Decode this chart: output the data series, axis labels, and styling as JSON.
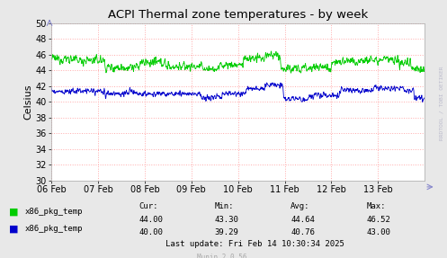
{
  "title": "ACPI Thermal zone temperatures - by week",
  "ylabel": "Celsius",
  "ylim": [
    30,
    50
  ],
  "yticks": [
    30,
    32,
    34,
    36,
    38,
    40,
    42,
    44,
    46,
    48,
    50
  ],
  "fig_bg_color": "#e8e8e8",
  "plot_bg_color": "#ffffff",
  "grid_color": "#ffaaaa",
  "line1_color": "#00cc00",
  "line2_color": "#0000cc",
  "legend_labels": [
    "x86_pkg_temp",
    "x86_pkg_temp"
  ],
  "stats_headers": [
    "Cur:",
    "Min:",
    "Avg:",
    "Max:"
  ],
  "stats_line1": [
    "44.00",
    "43.30",
    "44.64",
    "46.52"
  ],
  "stats_line2": [
    "40.00",
    "39.29",
    "40.76",
    "43.00"
  ],
  "last_update": "Last update: Fri Feb 14 10:30:34 2025",
  "munin_version": "Munin 2.0.56",
  "x_labels": [
    "06 Feb",
    "07 Feb",
    "08 Feb",
    "09 Feb",
    "10 Feb",
    "11 Feb",
    "12 Feb",
    "13 Feb"
  ],
  "rrdtool_text": "RRDTOOL / TOBI OETIKER",
  "green_mean": 44.7,
  "blue_mean": 41.0
}
